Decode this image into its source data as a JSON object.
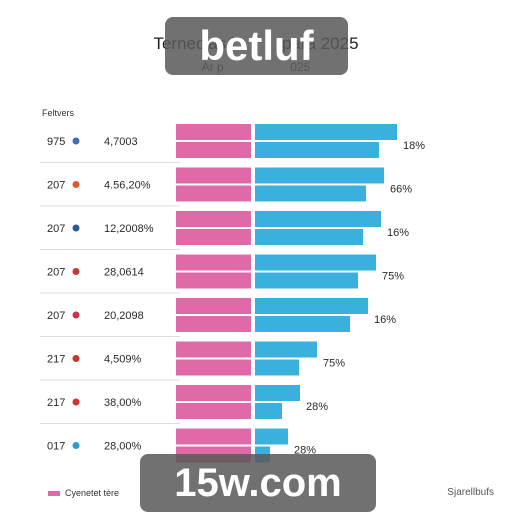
{
  "title": "Ternecias i          para 2025",
  "subtitle": "Ar p                    025",
  "watermarks": [
    "betluf",
    "15w.com"
  ],
  "header_label": "Feltvers",
  "legend_label": "Cyenetet tère",
  "corner_text": "Sjarellbufs",
  "colors": {
    "pink": "#e06aa8",
    "blue": "#3ab0dc"
  },
  "chart_data": {
    "type": "bar",
    "orientation": "horizontal",
    "categories": [
      "975",
      "207",
      "207",
      "207",
      "207",
      "217",
      "217",
      "017"
    ],
    "marker_colors": [
      "#3b6fb0",
      "#e05a2a",
      "#2a5a9a",
      "#c23a3a",
      "#c8334a",
      "#c0392b",
      "#d0342c",
      "#2aa0c8"
    ],
    "values_text": [
      "4,7003",
      "4.56,20%",
      "12,2008%",
      "28,0614",
      "20,2098",
      "4,509%",
      "38,00%",
      "28,00%"
    ],
    "data_labels": [
      "18%",
      "66%",
      "16%",
      "75%",
      "16%",
      "75%",
      "28%",
      "28%"
    ],
    "series": [
      {
        "values": [
          75,
          75,
          75,
          75,
          75,
          75,
          75,
          75
        ]
      },
      {
        "values": [
          142,
          129,
          126,
          121,
          113,
          62,
          45,
          33
        ]
      }
    ]
  }
}
